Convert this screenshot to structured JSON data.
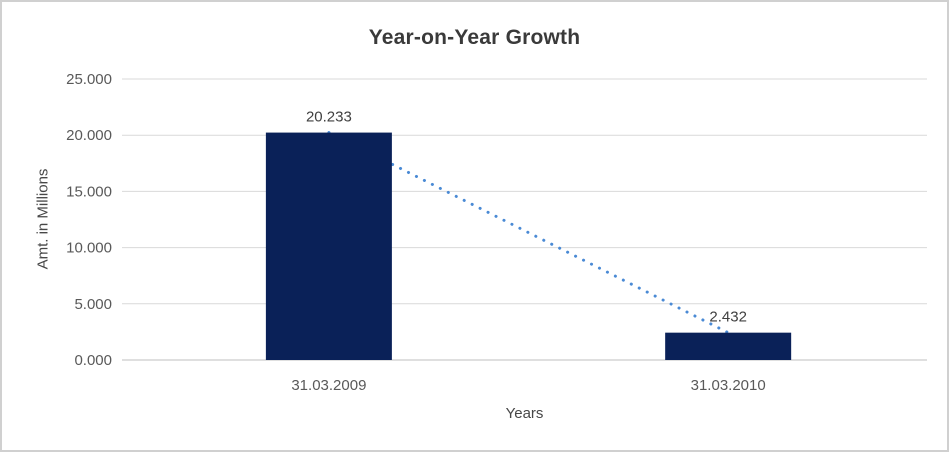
{
  "window": {
    "background": "#ffffff",
    "border_color": "#d0d0d0"
  },
  "chart_data": {
    "type": "bar",
    "title": "Year-on-Year Growth",
    "xlabel": "Years",
    "ylabel": "Amt. in Millions",
    "categories": [
      "31.03.2009",
      "31.03.2010"
    ],
    "values": [
      20.233,
      2.432
    ],
    "data_labels": [
      "20.233",
      "2.432"
    ],
    "y_ticks": [
      "0.000",
      "5.000",
      "10.000",
      "15.000",
      "20.000",
      "25.000"
    ],
    "y_tick_step": 5,
    "ylim": [
      0,
      25
    ],
    "grid": "horizontal",
    "legend": "none",
    "trendline": {
      "style": "dotted",
      "connects": "bar-tops",
      "points": [
        20.233,
        2.432
      ]
    },
    "colors": {
      "bar": "#0a2158",
      "trendline": "#4a8ad5",
      "gridline": "#d9d9d9",
      "axis_line": "#bfbfbf",
      "title_text": "#3a3a3a",
      "tick_text": "#595959",
      "data_label_text": "#404040",
      "axis_title_text": "#474747"
    }
  }
}
